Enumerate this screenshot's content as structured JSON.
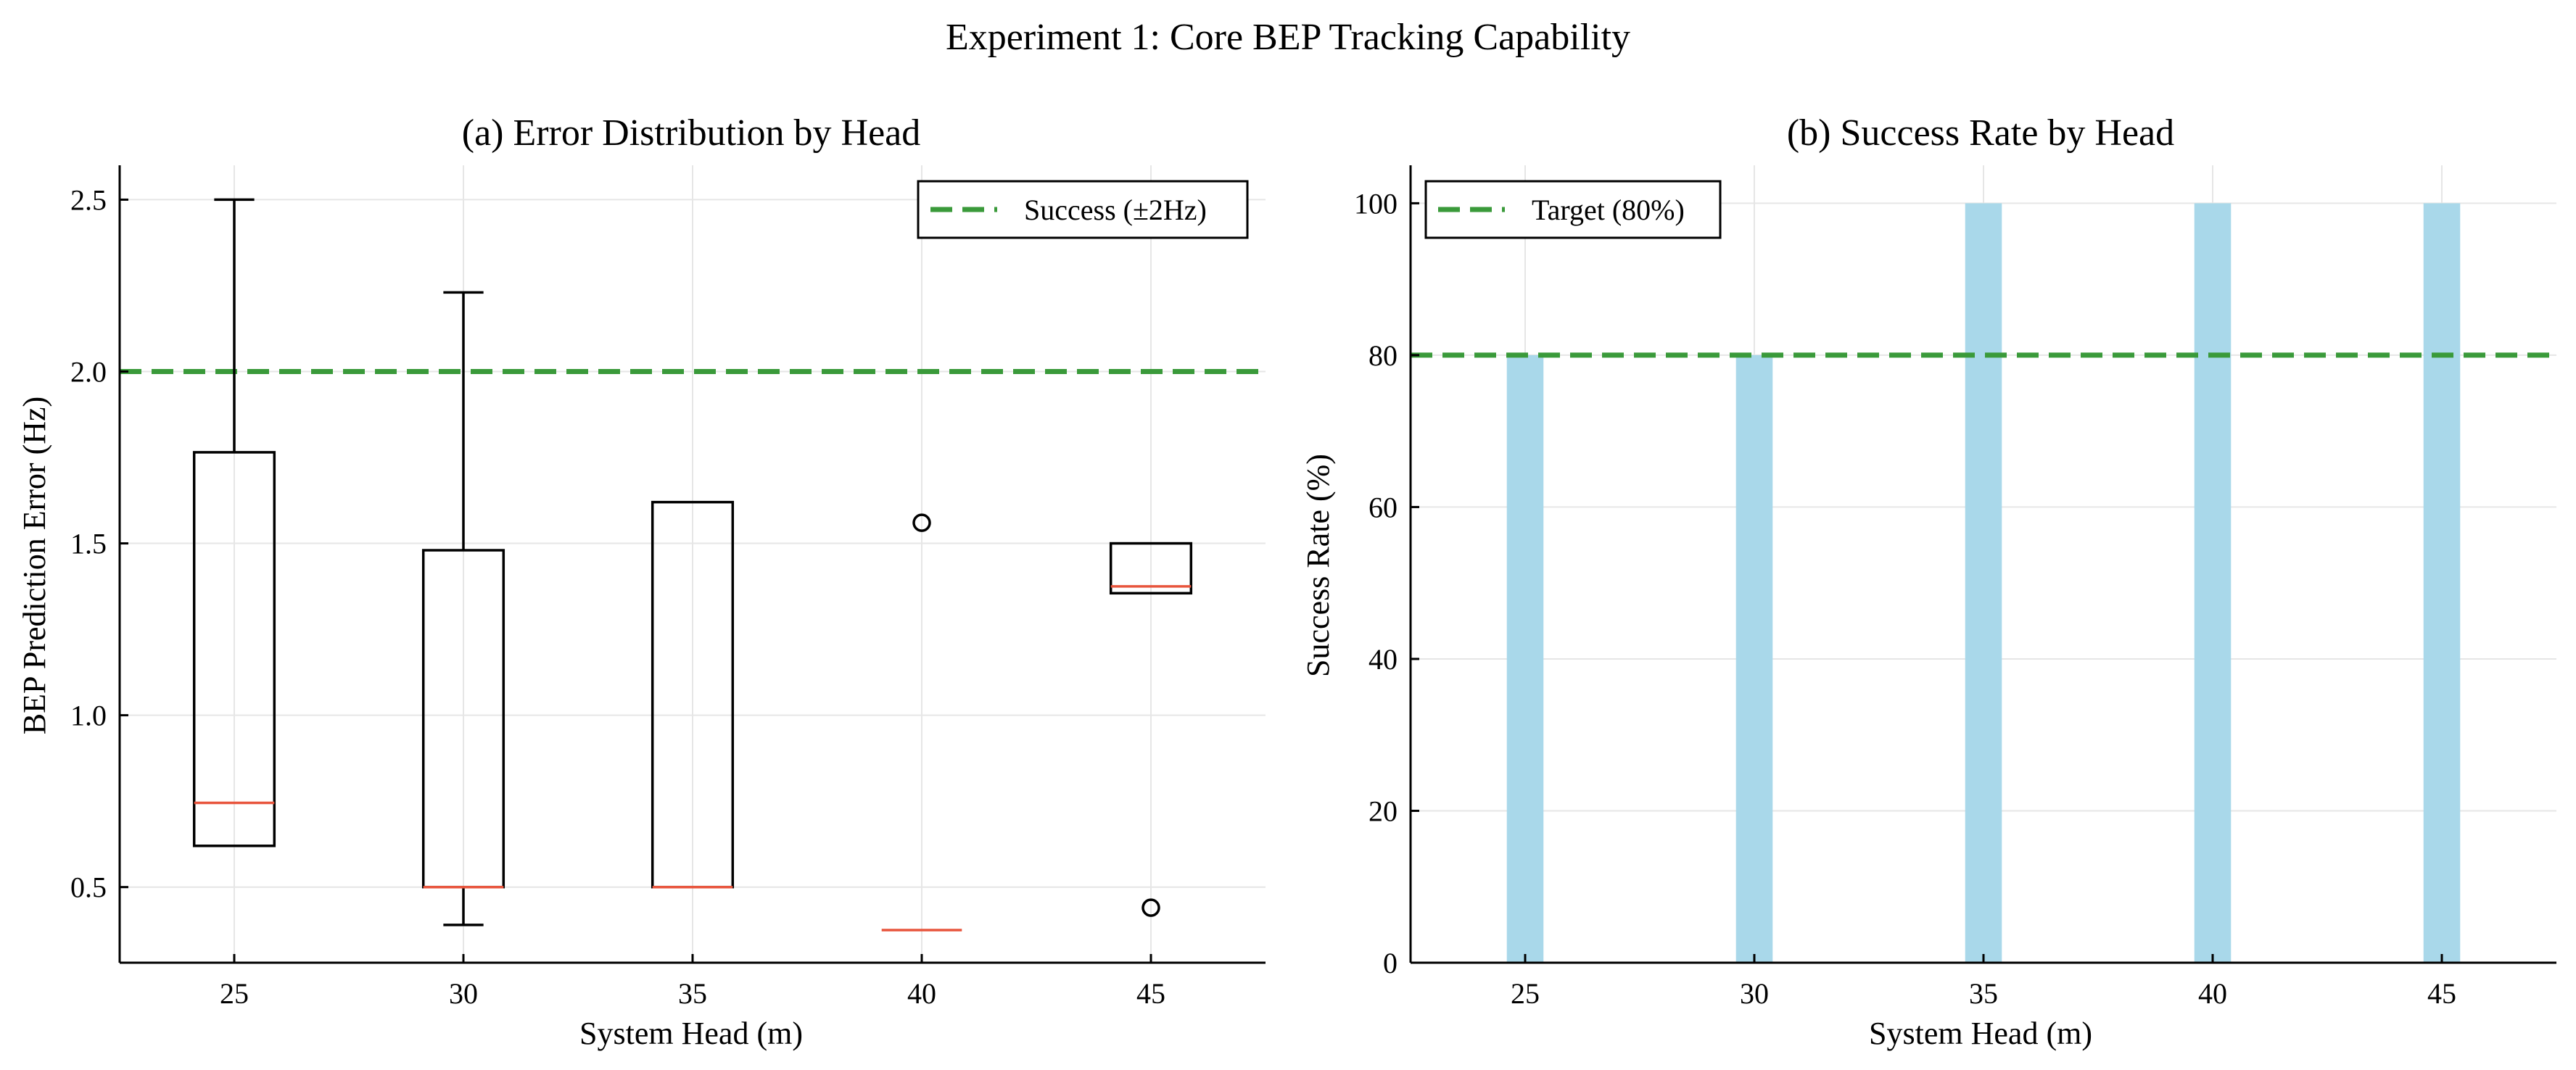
{
  "figure": {
    "suptitle": "Experiment 1: Core BEP Tracking Capability"
  },
  "chart_data": [
    {
      "type": "box",
      "title": "(a) Error Distribution by Head",
      "xlabel": "System Head (m)",
      "ylabel": "BEP Prediction Error (Hz)",
      "categories": [
        "25",
        "30",
        "35",
        "40",
        "45"
      ],
      "ylim": [
        0.28,
        2.6
      ],
      "yticks": [
        0.5,
        1.0,
        1.5,
        2.0,
        2.5
      ],
      "ytick_labels": [
        "0.5",
        "1.0",
        "1.5",
        "2.0",
        "2.5"
      ],
      "grid": true,
      "boxes": [
        {
          "category": "25",
          "whisker_low": 0.62,
          "q1": 0.62,
          "median": 0.745,
          "q3": 1.765,
          "whisker_high": 2.5,
          "outliers": []
        },
        {
          "category": "30",
          "whisker_low": 0.39,
          "q1": 0.5,
          "median": 0.5,
          "q3": 1.48,
          "whisker_high": 2.23,
          "outliers": []
        },
        {
          "category": "35",
          "whisker_low": 0.5,
          "q1": 0.5,
          "median": 0.5,
          "q3": 1.62,
          "whisker_high": 1.62,
          "outliers": []
        },
        {
          "category": "40",
          "whisker_low": 0.375,
          "q1": 0.375,
          "median": 0.375,
          "q3": 0.375,
          "whisker_high": 0.375,
          "outliers": [
            1.56
          ]
        },
        {
          "category": "45",
          "whisker_low": 1.355,
          "q1": 1.355,
          "median": 1.375,
          "q3": 1.5,
          "whisker_high": 1.5,
          "outliers": [
            0.44
          ]
        }
      ],
      "reference_line": {
        "y": 2.0,
        "label": "Success (±2Hz)",
        "color": "#3a9a3a",
        "style": "dashed"
      },
      "legend_position": "top-right",
      "colors": {
        "median": "#e8553d",
        "box": "#000000"
      }
    },
    {
      "type": "bar",
      "title": "(b) Success Rate by Head",
      "xlabel": "System Head (m)",
      "ylabel": "Success Rate (%)",
      "categories": [
        "25",
        "30",
        "35",
        "40",
        "45"
      ],
      "values": [
        80,
        80,
        100,
        100,
        100
      ],
      "ylim": [
        0,
        105
      ],
      "yticks": [
        0,
        20,
        40,
        60,
        80,
        100
      ],
      "ytick_labels": [
        "0",
        "20",
        "40",
        "60",
        "80",
        "100"
      ],
      "grid": true,
      "bar_color": "#a9d8ea",
      "reference_line": {
        "y": 80,
        "label": "Target (80%)",
        "color": "#3a9a3a",
        "style": "dashed"
      },
      "legend_position": "top-left"
    }
  ]
}
